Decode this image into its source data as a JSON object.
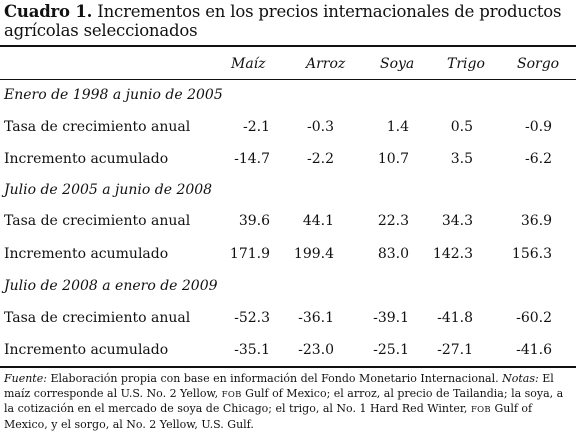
{
  "table": {
    "label": "Cuadro 1.",
    "title": "Incrementos en los precios internacionales de productos agrícolas seleccionados",
    "columns": [
      "Maíz",
      "Arroz",
      "Soya",
      "Trigo",
      "Sorgo"
    ],
    "sections": [
      {
        "period": "Enero de 1998 a junio de 2005",
        "rows": [
          {
            "label": "Tasa de crecimiento anual",
            "values": [
              "-2.1",
              "-0.3",
              "1.4",
              "0.5",
              "-0.9"
            ]
          },
          {
            "label": "Incremento acumulado",
            "values": [
              "-14.7",
              "-2.2",
              "10.7",
              "3.5",
              "-6.2"
            ]
          }
        ]
      },
      {
        "period": "Julio de 2005 a junio de 2008",
        "rows": [
          {
            "label": "Tasa de crecimiento anual",
            "values": [
              "39.6",
              "44.1",
              "22.3",
              "34.3",
              "36.9"
            ]
          },
          {
            "label": "Incremento acumulado",
            "values": [
              "171.9",
              "199.4",
              "83.0",
              "142.3",
              "156.3"
            ]
          }
        ]
      },
      {
        "period": "Julio de 2008 a enero de 2009",
        "rows": [
          {
            "label": "Tasa de crecimiento anual",
            "values": [
              "-52.3",
              "-36.1",
              "-39.1",
              "-41.8",
              "-60.2"
            ]
          },
          {
            "label": "Incremento acumulado",
            "values": [
              "-35.1",
              "-23.0",
              "-25.1",
              "-27.1",
              "-41.6"
            ]
          }
        ]
      }
    ]
  },
  "footnote": {
    "source_label": "Fuente:",
    "source_text": "Elaboración propia con base en información del Fondo Monetario Internacional.",
    "notes_label": "Notas:",
    "notes_p1": "El maíz corresponde al U.S. No. 2 Yellow,",
    "fob1": "FOB",
    "notes_p2": "Gulf of Mexico; el arroz, al precio de Tailandia; la soya, a la cotización en el mercado de soya de Chicago; el trigo, al No. 1 Hard Red Winter,",
    "fob2": "FOB",
    "notes_p3": "Gulf of Mexico, y el sorgo, al No. 2 Yellow, U.S. Gulf."
  }
}
